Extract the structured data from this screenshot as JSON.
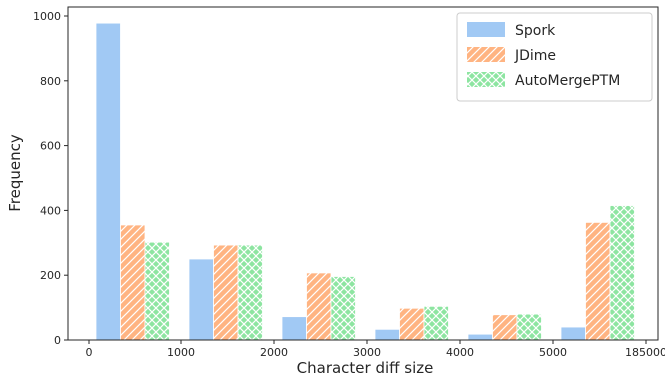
{
  "chart_data": {
    "type": "bar",
    "title": "",
    "xlabel": "Character diff size",
    "ylabel": "Frequency",
    "ylim": [
      0,
      1000
    ],
    "yticks": [
      "0",
      "200",
      "400",
      "600",
      "800",
      "1000"
    ],
    "xticks": [
      "0",
      "1000",
      "2000",
      "3000",
      "4000",
      "5000",
      "185000"
    ],
    "legend_position": "top-right",
    "grid": false,
    "series": [
      {
        "name": "Spork",
        "color": "#a1c9f4",
        "hatch": "none",
        "values": [
          978,
          250,
          72,
          33,
          18,
          40
        ]
      },
      {
        "name": "JDime",
        "color": "#ffb482",
        "hatch": "diagonal",
        "values": [
          355,
          293,
          207,
          98,
          78,
          363
        ]
      },
      {
        "name": "AutoMergePTM",
        "color": "#8de5a1",
        "hatch": "crosshatch",
        "values": [
          302,
          293,
          196,
          104,
          80,
          415
        ]
      }
    ]
  }
}
